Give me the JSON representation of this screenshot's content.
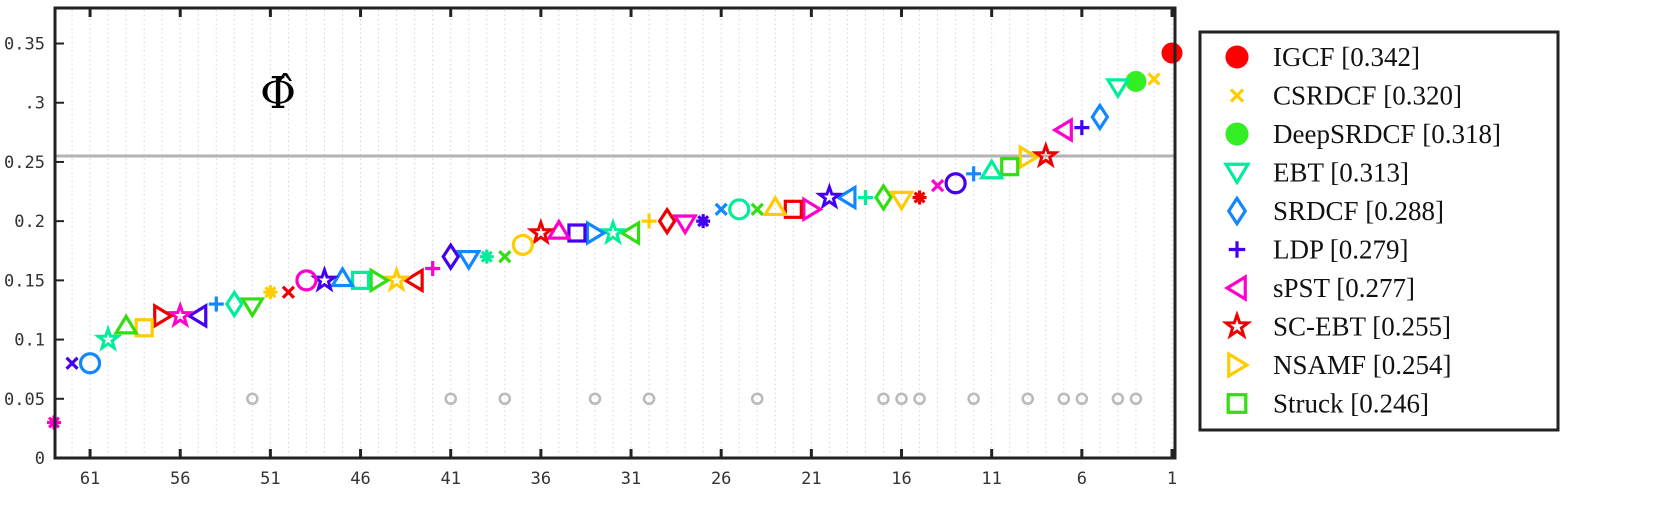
{
  "chart_data": {
    "type": "scatter",
    "title": "",
    "xlabel": "",
    "ylabel": "",
    "annotation": "Φ̂",
    "x_reversed": true,
    "xlim": [
      63,
      1
    ],
    "ylim": [
      0,
      0.38
    ],
    "x_ticks": [
      61,
      56,
      51,
      46,
      41,
      36,
      31,
      26,
      21,
      16,
      11,
      6,
      1
    ],
    "y_ticks": [
      0,
      0.05,
      0.1,
      0.15,
      0.2,
      0.25,
      0.3,
      0.35
    ],
    "y_tick_labels": [
      "0",
      "0.05",
      "0.1",
      "0.15",
      "0.2",
      "0.25",
      ".3",
      "0.35"
    ],
    "reference_line_y": 0.255,
    "legend_position": "outside-right",
    "legend": [
      {
        "label": "IGCF [0.342]",
        "marker": "filled-circle",
        "color": "#ff0000"
      },
      {
        "label": "CSRDCF [0.320]",
        "marker": "x",
        "color": "#ffcc00"
      },
      {
        "label": "DeepSRDCF [0.318]",
        "marker": "filled-circle",
        "color": "#33ee22"
      },
      {
        "label": "EBT [0.313]",
        "marker": "triangle-down",
        "color": "#00ee99"
      },
      {
        "label": "SRDCF [0.288]",
        "marker": "diamond",
        "color": "#1188ff"
      },
      {
        "label": "LDP [0.279]",
        "marker": "plus",
        "color": "#4400ee"
      },
      {
        "label": "sPST [0.277]",
        "marker": "triangle-left",
        "color": "#ff00cc"
      },
      {
        "label": "SC-EBT [0.255]",
        "marker": "star",
        "color": "#ee0000"
      },
      {
        "label": "NSAMF [0.254]",
        "marker": "triangle-right",
        "color": "#ffcc00"
      },
      {
        "label": "Struck [0.246]",
        "marker": "square",
        "color": "#33dd11"
      }
    ],
    "points": [
      {
        "x": 1,
        "y": 0.342,
        "marker": "filled-circle",
        "color": "#ff0000"
      },
      {
        "x": 2,
        "y": 0.32,
        "marker": "x",
        "color": "#ffcc00"
      },
      {
        "x": 3,
        "y": 0.318,
        "marker": "filled-circle",
        "color": "#33ee22"
      },
      {
        "x": 4,
        "y": 0.313,
        "marker": "triangle-down",
        "color": "#00ee99"
      },
      {
        "x": 5,
        "y": 0.288,
        "marker": "diamond",
        "color": "#1188ff"
      },
      {
        "x": 6,
        "y": 0.279,
        "marker": "plus",
        "color": "#4400ee"
      },
      {
        "x": 7,
        "y": 0.277,
        "marker": "triangle-left",
        "color": "#ff00cc"
      },
      {
        "x": 8,
        "y": 0.255,
        "marker": "star",
        "color": "#ee0000"
      },
      {
        "x": 9,
        "y": 0.254,
        "marker": "triangle-right",
        "color": "#ffcc00"
      },
      {
        "x": 10,
        "y": 0.246,
        "marker": "square",
        "color": "#33dd11"
      },
      {
        "x": 11,
        "y": 0.243,
        "marker": "triangle-up",
        "color": "#00ee99"
      },
      {
        "x": 12,
        "y": 0.24,
        "marker": "plus",
        "color": "#1188ff"
      },
      {
        "x": 13,
        "y": 0.232,
        "marker": "circle",
        "color": "#4400ee"
      },
      {
        "x": 14,
        "y": 0.23,
        "marker": "x",
        "color": "#ff00cc"
      },
      {
        "x": 15,
        "y": 0.22,
        "marker": "asterisk",
        "color": "#ee0000"
      },
      {
        "x": 16,
        "y": 0.218,
        "marker": "triangle-down",
        "color": "#ffcc00"
      },
      {
        "x": 17,
        "y": 0.22,
        "marker": "diamond",
        "color": "#33dd11"
      },
      {
        "x": 18,
        "y": 0.22,
        "marker": "plus",
        "color": "#00ee99"
      },
      {
        "x": 19,
        "y": 0.22,
        "marker": "triangle-left",
        "color": "#1188ff"
      },
      {
        "x": 20,
        "y": 0.22,
        "marker": "star",
        "color": "#4400ee"
      },
      {
        "x": 21,
        "y": 0.21,
        "marker": "triangle-right",
        "color": "#ff00cc"
      },
      {
        "x": 22,
        "y": 0.21,
        "marker": "square",
        "color": "#ee0000"
      },
      {
        "x": 23,
        "y": 0.212,
        "marker": "triangle-up",
        "color": "#ffcc00"
      },
      {
        "x": 24,
        "y": 0.21,
        "marker": "x",
        "color": "#33dd11"
      },
      {
        "x": 25,
        "y": 0.21,
        "marker": "circle",
        "color": "#00ee99"
      },
      {
        "x": 26,
        "y": 0.21,
        "marker": "x",
        "color": "#1188ff"
      },
      {
        "x": 27,
        "y": 0.2,
        "marker": "asterisk",
        "color": "#4400ee"
      },
      {
        "x": 28,
        "y": 0.198,
        "marker": "triangle-down",
        "color": "#ff00cc"
      },
      {
        "x": 29,
        "y": 0.2,
        "marker": "diamond",
        "color": "#ee0000"
      },
      {
        "x": 30,
        "y": 0.2,
        "marker": "plus",
        "color": "#ffcc00"
      },
      {
        "x": 31,
        "y": 0.19,
        "marker": "triangle-left",
        "color": "#33dd11"
      },
      {
        "x": 32,
        "y": 0.19,
        "marker": "star",
        "color": "#00ee99"
      },
      {
        "x": 33,
        "y": 0.19,
        "marker": "triangle-right",
        "color": "#1188ff"
      },
      {
        "x": 34,
        "y": 0.19,
        "marker": "square",
        "color": "#4400ee"
      },
      {
        "x": 35,
        "y": 0.192,
        "marker": "triangle-up",
        "color": "#ff00cc"
      },
      {
        "x": 36,
        "y": 0.19,
        "marker": "star",
        "color": "#ee0000"
      },
      {
        "x": 37,
        "y": 0.18,
        "marker": "circle",
        "color": "#ffcc00"
      },
      {
        "x": 38,
        "y": 0.17,
        "marker": "x",
        "color": "#33dd11"
      },
      {
        "x": 39,
        "y": 0.17,
        "marker": "asterisk",
        "color": "#00ee99"
      },
      {
        "x": 40,
        "y": 0.168,
        "marker": "triangle-down",
        "color": "#1188ff"
      },
      {
        "x": 41,
        "y": 0.17,
        "marker": "diamond",
        "color": "#4400ee"
      },
      {
        "x": 42,
        "y": 0.16,
        "marker": "plus",
        "color": "#ff00cc"
      },
      {
        "x": 43,
        "y": 0.15,
        "marker": "triangle-left",
        "color": "#ee0000"
      },
      {
        "x": 44,
        "y": 0.15,
        "marker": "star",
        "color": "#ffcc00"
      },
      {
        "x": 45,
        "y": 0.15,
        "marker": "triangle-right",
        "color": "#33dd11"
      },
      {
        "x": 46,
        "y": 0.15,
        "marker": "square",
        "color": "#00ee99"
      },
      {
        "x": 47,
        "y": 0.152,
        "marker": "triangle-up",
        "color": "#1188ff"
      },
      {
        "x": 48,
        "y": 0.15,
        "marker": "star",
        "color": "#4400ee"
      },
      {
        "x": 49,
        "y": 0.15,
        "marker": "circle",
        "color": "#ff00cc"
      },
      {
        "x": 50,
        "y": 0.14,
        "marker": "x",
        "color": "#ee0000"
      },
      {
        "x": 51,
        "y": 0.14,
        "marker": "asterisk",
        "color": "#ffcc00"
      },
      {
        "x": 52,
        "y": 0.128,
        "marker": "triangle-down",
        "color": "#33dd11"
      },
      {
        "x": 53,
        "y": 0.13,
        "marker": "diamond",
        "color": "#00ee99"
      },
      {
        "x": 54,
        "y": 0.13,
        "marker": "plus",
        "color": "#1188ff"
      },
      {
        "x": 55,
        "y": 0.12,
        "marker": "triangle-left",
        "color": "#4400ee"
      },
      {
        "x": 56,
        "y": 0.12,
        "marker": "star",
        "color": "#ff00cc"
      },
      {
        "x": 57,
        "y": 0.12,
        "marker": "triangle-right",
        "color": "#ee0000"
      },
      {
        "x": 58,
        "y": 0.11,
        "marker": "square",
        "color": "#ffcc00"
      },
      {
        "x": 59,
        "y": 0.112,
        "marker": "triangle-up",
        "color": "#33dd11"
      },
      {
        "x": 60,
        "y": 0.1,
        "marker": "star",
        "color": "#00ee99"
      },
      {
        "x": 61,
        "y": 0.08,
        "marker": "circle",
        "color": "#1188ff"
      },
      {
        "x": 62,
        "y": 0.08,
        "marker": "x",
        "color": "#4400ee"
      },
      {
        "x": 63,
        "y": 0.03,
        "marker": "asterisk",
        "color": "#ff00cc"
      }
    ],
    "secondary_markers": {
      "y": 0.05,
      "marker": "small-circle",
      "color": "#bbbbbb",
      "x": [
        3,
        4,
        6,
        7,
        9,
        12,
        15,
        16,
        17,
        24,
        30,
        33,
        38,
        41,
        52
      ]
    }
  }
}
